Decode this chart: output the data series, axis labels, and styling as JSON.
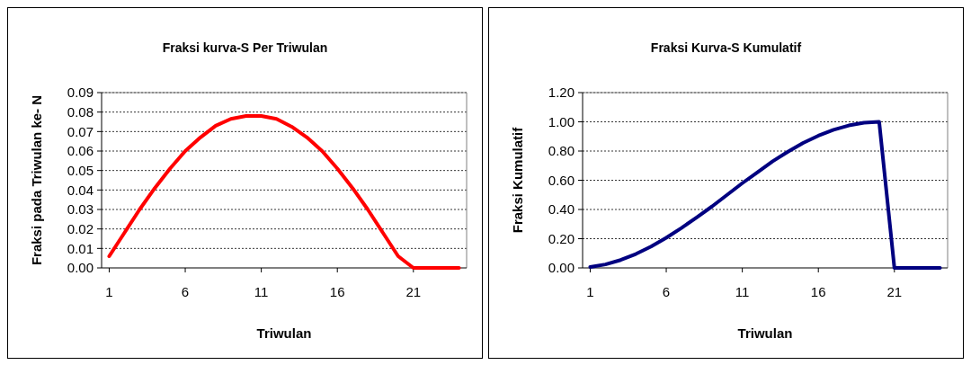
{
  "chart_data": [
    {
      "type": "line",
      "title": "Fraksi kurva-S Per Triwulan",
      "xlabel": "Triwulan",
      "ylabel": "Fraksi pada Triwulan ke- N",
      "x": [
        1,
        2,
        3,
        4,
        5,
        6,
        7,
        8,
        9,
        10,
        11,
        12,
        13,
        14,
        15,
        16,
        17,
        18,
        19,
        20,
        21,
        22,
        23,
        24
      ],
      "series": [
        {
          "color": "#ff0000",
          "values": [
            0.006,
            0.018,
            0.03,
            0.041,
            0.051,
            0.06,
            0.067,
            0.073,
            0.0765,
            0.078,
            0.078,
            0.0765,
            0.0725,
            0.067,
            0.06,
            0.051,
            0.041,
            0.03,
            0.018,
            0.006,
            0,
            0,
            0,
            0
          ]
        }
      ],
      "xlim": [
        0.5,
        24.5
      ],
      "xticks": [
        1,
        6,
        11,
        16,
        21
      ],
      "ylim": [
        0,
        0.09
      ],
      "yticks": [
        {
          "value": 0,
          "label": "0.00"
        },
        {
          "value": 0.01,
          "label": "0.01"
        },
        {
          "value": 0.02,
          "label": "0.02"
        },
        {
          "value": 0.03,
          "label": "0.03"
        },
        {
          "value": 0.04,
          "label": "0.04"
        },
        {
          "value": 0.05,
          "label": "0.05"
        },
        {
          "value": 0.06,
          "label": "0.06"
        },
        {
          "value": 0.07,
          "label": "0.07"
        },
        {
          "value": 0.08,
          "label": "0.08"
        },
        {
          "value": 0.09,
          "label": "0.09"
        }
      ],
      "grid": "y",
      "marker": "none",
      "line_style": "solid"
    },
    {
      "type": "line",
      "title": "Fraksi Kurva-S Kumulatif",
      "xlabel": "Triwulan",
      "ylabel": "Fraksi Kumulatif",
      "x": [
        1,
        2,
        3,
        4,
        5,
        6,
        7,
        8,
        9,
        10,
        11,
        12,
        13,
        14,
        15,
        16,
        17,
        18,
        19,
        20,
        21,
        22,
        23,
        24
      ],
      "series": [
        {
          "color": "#000080",
          "values": [
            0.006,
            0.024,
            0.054,
            0.095,
            0.146,
            0.206,
            0.273,
            0.346,
            0.42,
            0.5,
            0.58,
            0.655,
            0.73,
            0.795,
            0.855,
            0.905,
            0.945,
            0.975,
            0.994,
            1.0,
            0,
            0,
            0,
            0
          ]
        }
      ],
      "xlim": [
        0.5,
        24.5
      ],
      "xticks": [
        1,
        6,
        11,
        16,
        21
      ],
      "ylim": [
        0,
        1.2
      ],
      "yticks": [
        {
          "value": 0,
          "label": "0.00"
        },
        {
          "value": 0.2,
          "label": "0.20"
        },
        {
          "value": 0.4,
          "label": "0.40"
        },
        {
          "value": 0.6,
          "label": "0.60"
        },
        {
          "value": 0.8,
          "label": "0.80"
        },
        {
          "value": 1.0,
          "label": "1.00"
        },
        {
          "value": 1.2,
          "label": "1.20"
        }
      ],
      "grid": "y",
      "marker": "none",
      "line_style": "solid"
    }
  ]
}
